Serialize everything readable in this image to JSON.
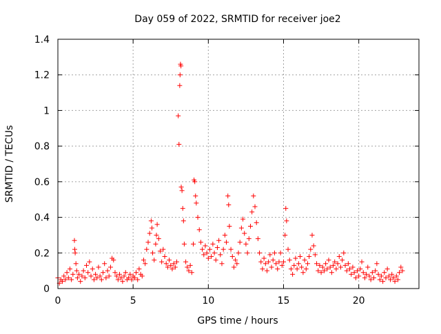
{
  "chart_data": {
    "type": "scatter",
    "title": "Day 059 of 2022, SRMTID for receiver joe2",
    "xlabel": "GPS time / hours",
    "ylabel": "SRMTID / TECUs",
    "xlim": [
      0,
      24
    ],
    "ylim": [
      0,
      1.4
    ],
    "x_ticks": [
      0,
      5,
      10,
      15,
      20
    ],
    "x_tick_labels": [
      "0",
      "5",
      "10",
      "15",
      "20"
    ],
    "y_ticks": [
      0,
      0.2,
      0.4,
      0.6,
      0.8,
      1.0,
      1.2,
      1.4
    ],
    "y_tick_labels": [
      "0",
      "0.2",
      "0.4",
      "0.6",
      "0.8",
      "1",
      "1.2",
      "1.4"
    ],
    "grid": true,
    "marker": "+",
    "marker_color": "#ff0000",
    "series": [
      {
        "name": "SRMTID",
        "points": [
          [
            0.0,
            0.06
          ],
          [
            0.1,
            0.03
          ],
          [
            0.2,
            0.05
          ],
          [
            0.3,
            0.04
          ],
          [
            0.4,
            0.07
          ],
          [
            0.5,
            0.05
          ],
          [
            0.6,
            0.09
          ],
          [
            0.7,
            0.06
          ],
          [
            0.8,
            0.11
          ],
          [
            0.9,
            0.05
          ],
          [
            1.0,
            0.08
          ],
          [
            1.1,
            0.27
          ],
          [
            1.12,
            0.22
          ],
          [
            1.15,
            0.2
          ],
          [
            1.2,
            0.14
          ],
          [
            1.25,
            0.1
          ],
          [
            1.3,
            0.06
          ],
          [
            1.4,
            0.08
          ],
          [
            1.5,
            0.04
          ],
          [
            1.6,
            0.07
          ],
          [
            1.7,
            0.1
          ],
          [
            1.8,
            0.06
          ],
          [
            1.9,
            0.13
          ],
          [
            2.0,
            0.09
          ],
          [
            2.1,
            0.15
          ],
          [
            2.2,
            0.07
          ],
          [
            2.3,
            0.11
          ],
          [
            2.4,
            0.05
          ],
          [
            2.5,
            0.08
          ],
          [
            2.6,
            0.06
          ],
          [
            2.7,
            0.12
          ],
          [
            2.8,
            0.07
          ],
          [
            2.9,
            0.05
          ],
          [
            3.0,
            0.09
          ],
          [
            3.1,
            0.14
          ],
          [
            3.2,
            0.06
          ],
          [
            3.3,
            0.1
          ],
          [
            3.4,
            0.07
          ],
          [
            3.5,
            0.12
          ],
          [
            3.6,
            0.17
          ],
          [
            3.7,
            0.16
          ],
          [
            3.8,
            0.09
          ],
          [
            3.9,
            0.07
          ],
          [
            4.0,
            0.05
          ],
          [
            4.1,
            0.08
          ],
          [
            4.2,
            0.06
          ],
          [
            4.3,
            0.04
          ],
          [
            4.4,
            0.07
          ],
          [
            4.5,
            0.09
          ],
          [
            4.6,
            0.05
          ],
          [
            4.7,
            0.06
          ],
          [
            4.8,
            0.08
          ],
          [
            4.9,
            0.05
          ],
          [
            5.0,
            0.07
          ],
          [
            5.1,
            0.06
          ],
          [
            5.2,
            0.09
          ],
          [
            5.3,
            0.05
          ],
          [
            5.4,
            0.11
          ],
          [
            5.5,
            0.08
          ],
          [
            5.6,
            0.07
          ],
          [
            5.7,
            0.16
          ],
          [
            5.8,
            0.14
          ],
          [
            5.9,
            0.22
          ],
          [
            6.0,
            0.26
          ],
          [
            6.1,
            0.31
          ],
          [
            6.2,
            0.38
          ],
          [
            6.25,
            0.34
          ],
          [
            6.3,
            0.2
          ],
          [
            6.4,
            0.16
          ],
          [
            6.5,
            0.25
          ],
          [
            6.55,
            0.3
          ],
          [
            6.6,
            0.36
          ],
          [
            6.7,
            0.28
          ],
          [
            6.8,
            0.21
          ],
          [
            6.9,
            0.15
          ],
          [
            7.0,
            0.22
          ],
          [
            7.1,
            0.18
          ],
          [
            7.2,
            0.14
          ],
          [
            7.3,
            0.12
          ],
          [
            7.4,
            0.16
          ],
          [
            7.5,
            0.13
          ],
          [
            7.6,
            0.11
          ],
          [
            7.7,
            0.14
          ],
          [
            7.8,
            0.12
          ],
          [
            7.9,
            0.15
          ],
          [
            8.0,
            0.97
          ],
          [
            8.05,
            0.81
          ],
          [
            8.1,
            1.14
          ],
          [
            8.12,
            1.2
          ],
          [
            8.15,
            1.26
          ],
          [
            8.18,
            1.25
          ],
          [
            8.2,
            0.57
          ],
          [
            8.25,
            0.55
          ],
          [
            8.3,
            0.45
          ],
          [
            8.35,
            0.38
          ],
          [
            8.4,
            0.25
          ],
          [
            8.5,
            0.15
          ],
          [
            8.6,
            0.12
          ],
          [
            8.7,
            0.1
          ],
          [
            8.8,
            0.13
          ],
          [
            8.9,
            0.09
          ],
          [
            9.0,
            0.25
          ],
          [
            9.05,
            0.61
          ],
          [
            9.1,
            0.6
          ],
          [
            9.15,
            0.52
          ],
          [
            9.2,
            0.48
          ],
          [
            9.3,
            0.4
          ],
          [
            9.4,
            0.33
          ],
          [
            9.5,
            0.26
          ],
          [
            9.6,
            0.22
          ],
          [
            9.7,
            0.19
          ],
          [
            9.8,
            0.24
          ],
          [
            9.9,
            0.2
          ],
          [
            10.0,
            0.17
          ],
          [
            10.1,
            0.22
          ],
          [
            10.2,
            0.18
          ],
          [
            10.3,
            0.25
          ],
          [
            10.4,
            0.2
          ],
          [
            10.5,
            0.16
          ],
          [
            10.6,
            0.23
          ],
          [
            10.7,
            0.27
          ],
          [
            10.8,
            0.19
          ],
          [
            10.9,
            0.14
          ],
          [
            11.0,
            0.22
          ],
          [
            11.1,
            0.3
          ],
          [
            11.2,
            0.26
          ],
          [
            11.3,
            0.52
          ],
          [
            11.35,
            0.47
          ],
          [
            11.4,
            0.35
          ],
          [
            11.5,
            0.22
          ],
          [
            11.6,
            0.18
          ],
          [
            11.7,
            0.12
          ],
          [
            11.8,
            0.16
          ],
          [
            11.9,
            0.14
          ],
          [
            12.0,
            0.2
          ],
          [
            12.1,
            0.26
          ],
          [
            12.2,
            0.34
          ],
          [
            12.3,
            0.39
          ],
          [
            12.4,
            0.31
          ],
          [
            12.5,
            0.25
          ],
          [
            12.6,
            0.2
          ],
          [
            12.7,
            0.28
          ],
          [
            12.8,
            0.35
          ],
          [
            12.9,
            0.43
          ],
          [
            13.0,
            0.52
          ],
          [
            13.1,
            0.46
          ],
          [
            13.2,
            0.37
          ],
          [
            13.3,
            0.28
          ],
          [
            13.4,
            0.2
          ],
          [
            13.5,
            0.15
          ],
          [
            13.6,
            0.11
          ],
          [
            13.7,
            0.17
          ],
          [
            13.8,
            0.14
          ],
          [
            13.9,
            0.1
          ],
          [
            14.0,
            0.15
          ],
          [
            14.1,
            0.19
          ],
          [
            14.2,
            0.12
          ],
          [
            14.3,
            0.16
          ],
          [
            14.4,
            0.2
          ],
          [
            14.5,
            0.14
          ],
          [
            14.6,
            0.11
          ],
          [
            14.7,
            0.15
          ],
          [
            14.8,
            0.2
          ],
          [
            14.9,
            0.13
          ],
          [
            15.0,
            0.15
          ],
          [
            15.1,
            0.3
          ],
          [
            15.15,
            0.45
          ],
          [
            15.2,
            0.38
          ],
          [
            15.3,
            0.22
          ],
          [
            15.4,
            0.16
          ],
          [
            15.5,
            0.11
          ],
          [
            15.6,
            0.08
          ],
          [
            15.7,
            0.13
          ],
          [
            15.8,
            0.17
          ],
          [
            15.9,
            0.11
          ],
          [
            16.0,
            0.14
          ],
          [
            16.1,
            0.18
          ],
          [
            16.2,
            0.12
          ],
          [
            16.3,
            0.09
          ],
          [
            16.4,
            0.16
          ],
          [
            16.5,
            0.11
          ],
          [
            16.6,
            0.14
          ],
          [
            16.7,
            0.18
          ],
          [
            16.8,
            0.22
          ],
          [
            16.9,
            0.3
          ],
          [
            17.0,
            0.24
          ],
          [
            17.1,
            0.19
          ],
          [
            17.2,
            0.14
          ],
          [
            17.3,
            0.1
          ],
          [
            17.4,
            0.13
          ],
          [
            17.5,
            0.09
          ],
          [
            17.6,
            0.12
          ],
          [
            17.7,
            0.1
          ],
          [
            17.8,
            0.14
          ],
          [
            17.9,
            0.11
          ],
          [
            18.0,
            0.16
          ],
          [
            18.1,
            0.12
          ],
          [
            18.2,
            0.09
          ],
          [
            18.3,
            0.13
          ],
          [
            18.4,
            0.15
          ],
          [
            18.5,
            0.11
          ],
          [
            18.6,
            0.14
          ],
          [
            18.7,
            0.18
          ],
          [
            18.8,
            0.12
          ],
          [
            18.9,
            0.16
          ],
          [
            19.0,
            0.2
          ],
          [
            19.1,
            0.13
          ],
          [
            19.2,
            0.1
          ],
          [
            19.3,
            0.14
          ],
          [
            19.4,
            0.11
          ],
          [
            19.5,
            0.08
          ],
          [
            19.6,
            0.12
          ],
          [
            19.7,
            0.09
          ],
          [
            19.8,
            0.06
          ],
          [
            19.9,
            0.1
          ],
          [
            20.0,
            0.07
          ],
          [
            20.1,
            0.11
          ],
          [
            20.2,
            0.15
          ],
          [
            20.3,
            0.09
          ],
          [
            20.4,
            0.06
          ],
          [
            20.5,
            0.08
          ],
          [
            20.6,
            0.12
          ],
          [
            20.7,
            0.07
          ],
          [
            20.8,
            0.05
          ],
          [
            20.9,
            0.09
          ],
          [
            21.0,
            0.06
          ],
          [
            21.1,
            0.1
          ],
          [
            21.2,
            0.14
          ],
          [
            21.3,
            0.08
          ],
          [
            21.4,
            0.05
          ],
          [
            21.5,
            0.07
          ],
          [
            21.6,
            0.04
          ],
          [
            21.7,
            0.09
          ],
          [
            21.8,
            0.06
          ],
          [
            21.9,
            0.11
          ],
          [
            22.0,
            0.07
          ],
          [
            22.1,
            0.05
          ],
          [
            22.2,
            0.08
          ],
          [
            22.3,
            0.06
          ],
          [
            22.4,
            0.04
          ],
          [
            22.5,
            0.07
          ],
          [
            22.6,
            0.05
          ],
          [
            22.7,
            0.09
          ],
          [
            22.8,
            0.12
          ],
          [
            22.9,
            0.1
          ]
        ]
      }
    ]
  }
}
